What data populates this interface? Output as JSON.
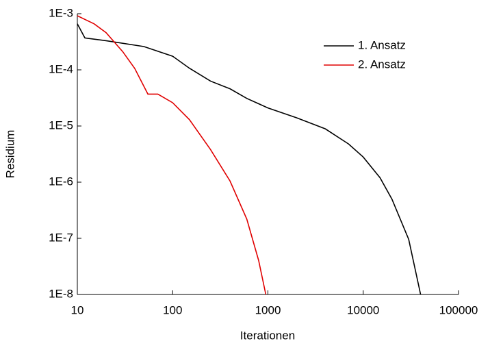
{
  "chart_data": {
    "type": "line",
    "x_label": "Iterationen",
    "y_label": "Residium",
    "xscale": "log",
    "yscale": "log",
    "legend": "upper right",
    "xlim": [
      10,
      100000
    ],
    "xticks": [
      10,
      100,
      1000,
      10000,
      100000
    ],
    "ylim": [
      1e-08,
      0.001
    ],
    "yticks": [
      {
        "value": 1e-08,
        "label": "1E-8"
      },
      {
        "value": 1e-07,
        "label": "1E-7"
      },
      {
        "value": 1e-06,
        "label": "1E-6"
      },
      {
        "value": 1e-05,
        "label": "1E-5"
      },
      {
        "value": 0.0001,
        "label": "1E-4"
      },
      {
        "value": 0.001,
        "label": "1E-3"
      }
    ],
    "series": [
      {
        "name": "1. Ansatz",
        "color": "#000000",
        "x": [
          10,
          12,
          20,
          50,
          100,
          150,
          250,
          400,
          600,
          1000,
          2000,
          4000,
          7000,
          10000,
          15000,
          20000,
          30000,
          40000
        ],
        "values": [
          0.00066,
          0.00037,
          0.00033,
          0.00026,
          0.000175,
          0.000107,
          6.3e-05,
          4.6e-05,
          3.1e-05,
          2.1e-05,
          1.4e-05,
          8.9e-06,
          4.8e-06,
          2.8e-06,
          1.2e-06,
          5e-07,
          9.6e-08,
          1e-08
        ]
      },
      {
        "name": "2. Ansatz",
        "color": "#e00000",
        "x": [
          10,
          15,
          20,
          30,
          40,
          55,
          70,
          100,
          150,
          250,
          400,
          600,
          800,
          950
        ],
        "values": [
          0.00092,
          0.00066,
          0.00046,
          0.00021,
          0.000106,
          3.7e-05,
          3.7e-05,
          2.6e-05,
          1.3e-05,
          3.8e-06,
          1.05e-06,
          2.2e-07,
          4e-08,
          1e-08
        ]
      }
    ]
  }
}
